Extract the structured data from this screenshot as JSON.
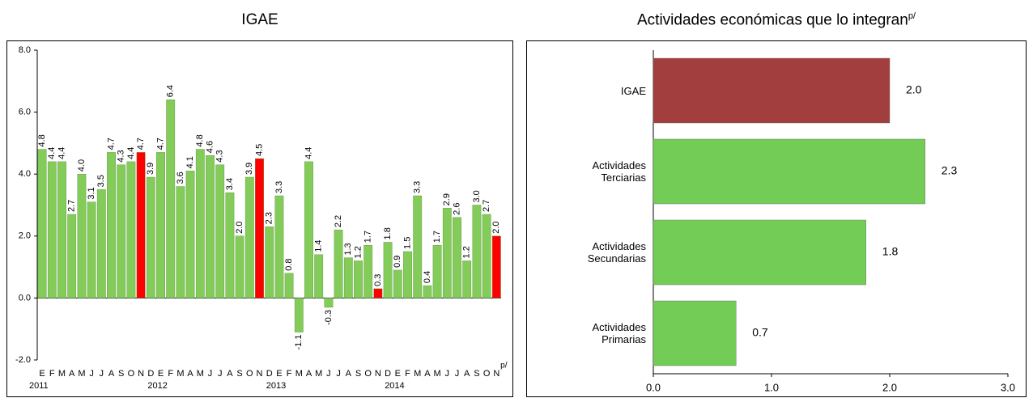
{
  "chart_data": [
    {
      "type": "bar",
      "title": "IGAE",
      "categories": [
        "E",
        "F",
        "M",
        "A",
        "M",
        "J",
        "J",
        "A",
        "S",
        "O",
        "N",
        "D",
        "E",
        "F",
        "M",
        "A",
        "M",
        "J",
        "J",
        "A",
        "S",
        "O",
        "N",
        "D",
        "E",
        "F",
        "M",
        "A",
        "M",
        "J",
        "J",
        "A",
        "S",
        "O",
        "N",
        "D",
        "E",
        "F",
        "M",
        "A",
        "M",
        "J",
        "J",
        "A",
        "S",
        "O",
        "N"
      ],
      "years": [
        "2011",
        "2012",
        "2013",
        "2014"
      ],
      "note_mark": "p/",
      "values": [
        4.8,
        4.4,
        4.4,
        2.7,
        4.0,
        3.1,
        3.5,
        4.7,
        4.3,
        4.4,
        4.7,
        3.9,
        4.7,
        6.4,
        3.6,
        4.1,
        4.8,
        4.6,
        4.3,
        3.4,
        2.0,
        3.9,
        4.5,
        2.3,
        3.3,
        0.8,
        -1.1,
        4.4,
        1.4,
        -0.3,
        2.2,
        1.3,
        1.2,
        1.7,
        0.3,
        1.8,
        0.9,
        1.5,
        3.3,
        0.4,
        1.7,
        2.9,
        2.6,
        1.2,
        3.0,
        2.7,
        2.0
      ],
      "value_labels": [
        "4.8",
        "4.4",
        "4.4",
        "2.7",
        "4.0",
        "3.1",
        "3.5",
        "4.7",
        "4.3",
        "4.4",
        "4.7",
        "3.9",
        "4.7",
        "6.4",
        "3.6",
        "4.1",
        "4.8",
        "4.6",
        "4.3",
        "3.4",
        "2.0",
        "3.9",
        "4.5",
        "2.3",
        "3.3",
        "0.8",
        "-1.1",
        "4.4",
        "1.4",
        "-0.3",
        "2.2",
        "1.3",
        "1.2",
        "1.7",
        "0.3",
        "1.8",
        "0.9",
        "1.5",
        "3.3",
        "0.4",
        "1.7",
        "2.9",
        "2.6",
        "1.2",
        "3.0",
        "2.7",
        "2.0"
      ],
      "colors": [
        "#84cc5a",
        "#84cc5a",
        "#84cc5a",
        "#84cc5a",
        "#84cc5a",
        "#84cc5a",
        "#84cc5a",
        "#84cc5a",
        "#84cc5a",
        "#84cc5a",
        "#ff0000",
        "#84cc5a",
        "#84cc5a",
        "#84cc5a",
        "#84cc5a",
        "#84cc5a",
        "#84cc5a",
        "#84cc5a",
        "#84cc5a",
        "#84cc5a",
        "#84cc5a",
        "#84cc5a",
        "#ff0000",
        "#84cc5a",
        "#84cc5a",
        "#84cc5a",
        "#84cc5a",
        "#84cc5a",
        "#84cc5a",
        "#84cc5a",
        "#84cc5a",
        "#84cc5a",
        "#84cc5a",
        "#84cc5a",
        "#ff0000",
        "#84cc5a",
        "#84cc5a",
        "#84cc5a",
        "#84cc5a",
        "#84cc5a",
        "#84cc5a",
        "#84cc5a",
        "#84cc5a",
        "#84cc5a",
        "#84cc5a",
        "#84cc5a",
        "#ff0000"
      ],
      "ylim": [
        -2,
        8
      ],
      "yticks": [
        {
          "value": -2,
          "label": "-2.0"
        },
        {
          "value": 0,
          "label": "0.0"
        },
        {
          "value": 2,
          "label": "2.0"
        },
        {
          "value": 4,
          "label": "4.0"
        },
        {
          "value": 6,
          "label": "6.0"
        },
        {
          "value": 8,
          "label": "8.0"
        }
      ]
    },
    {
      "type": "hbar",
      "title": "Actividades económicas que lo integran",
      "title_note": "p/",
      "categories": [
        "IGAE",
        "Actividades Terciarias",
        "Actividades Secundarias",
        "Actividades Primarias"
      ],
      "values": [
        2.0,
        2.3,
        1.8,
        0.7
      ],
      "value_labels": [
        "2.0",
        "2.3",
        "1.8",
        "0.7"
      ],
      "colors": [
        "#a23e3e",
        "#72cc55",
        "#72cc55",
        "#72cc55"
      ],
      "xlim": [
        0,
        3
      ],
      "xticks": [
        {
          "value": 0,
          "label": "0.0"
        },
        {
          "value": 1,
          "label": "1.0"
        },
        {
          "value": 2,
          "label": "2.0"
        },
        {
          "value": 3,
          "label": "3.0"
        }
      ]
    }
  ]
}
